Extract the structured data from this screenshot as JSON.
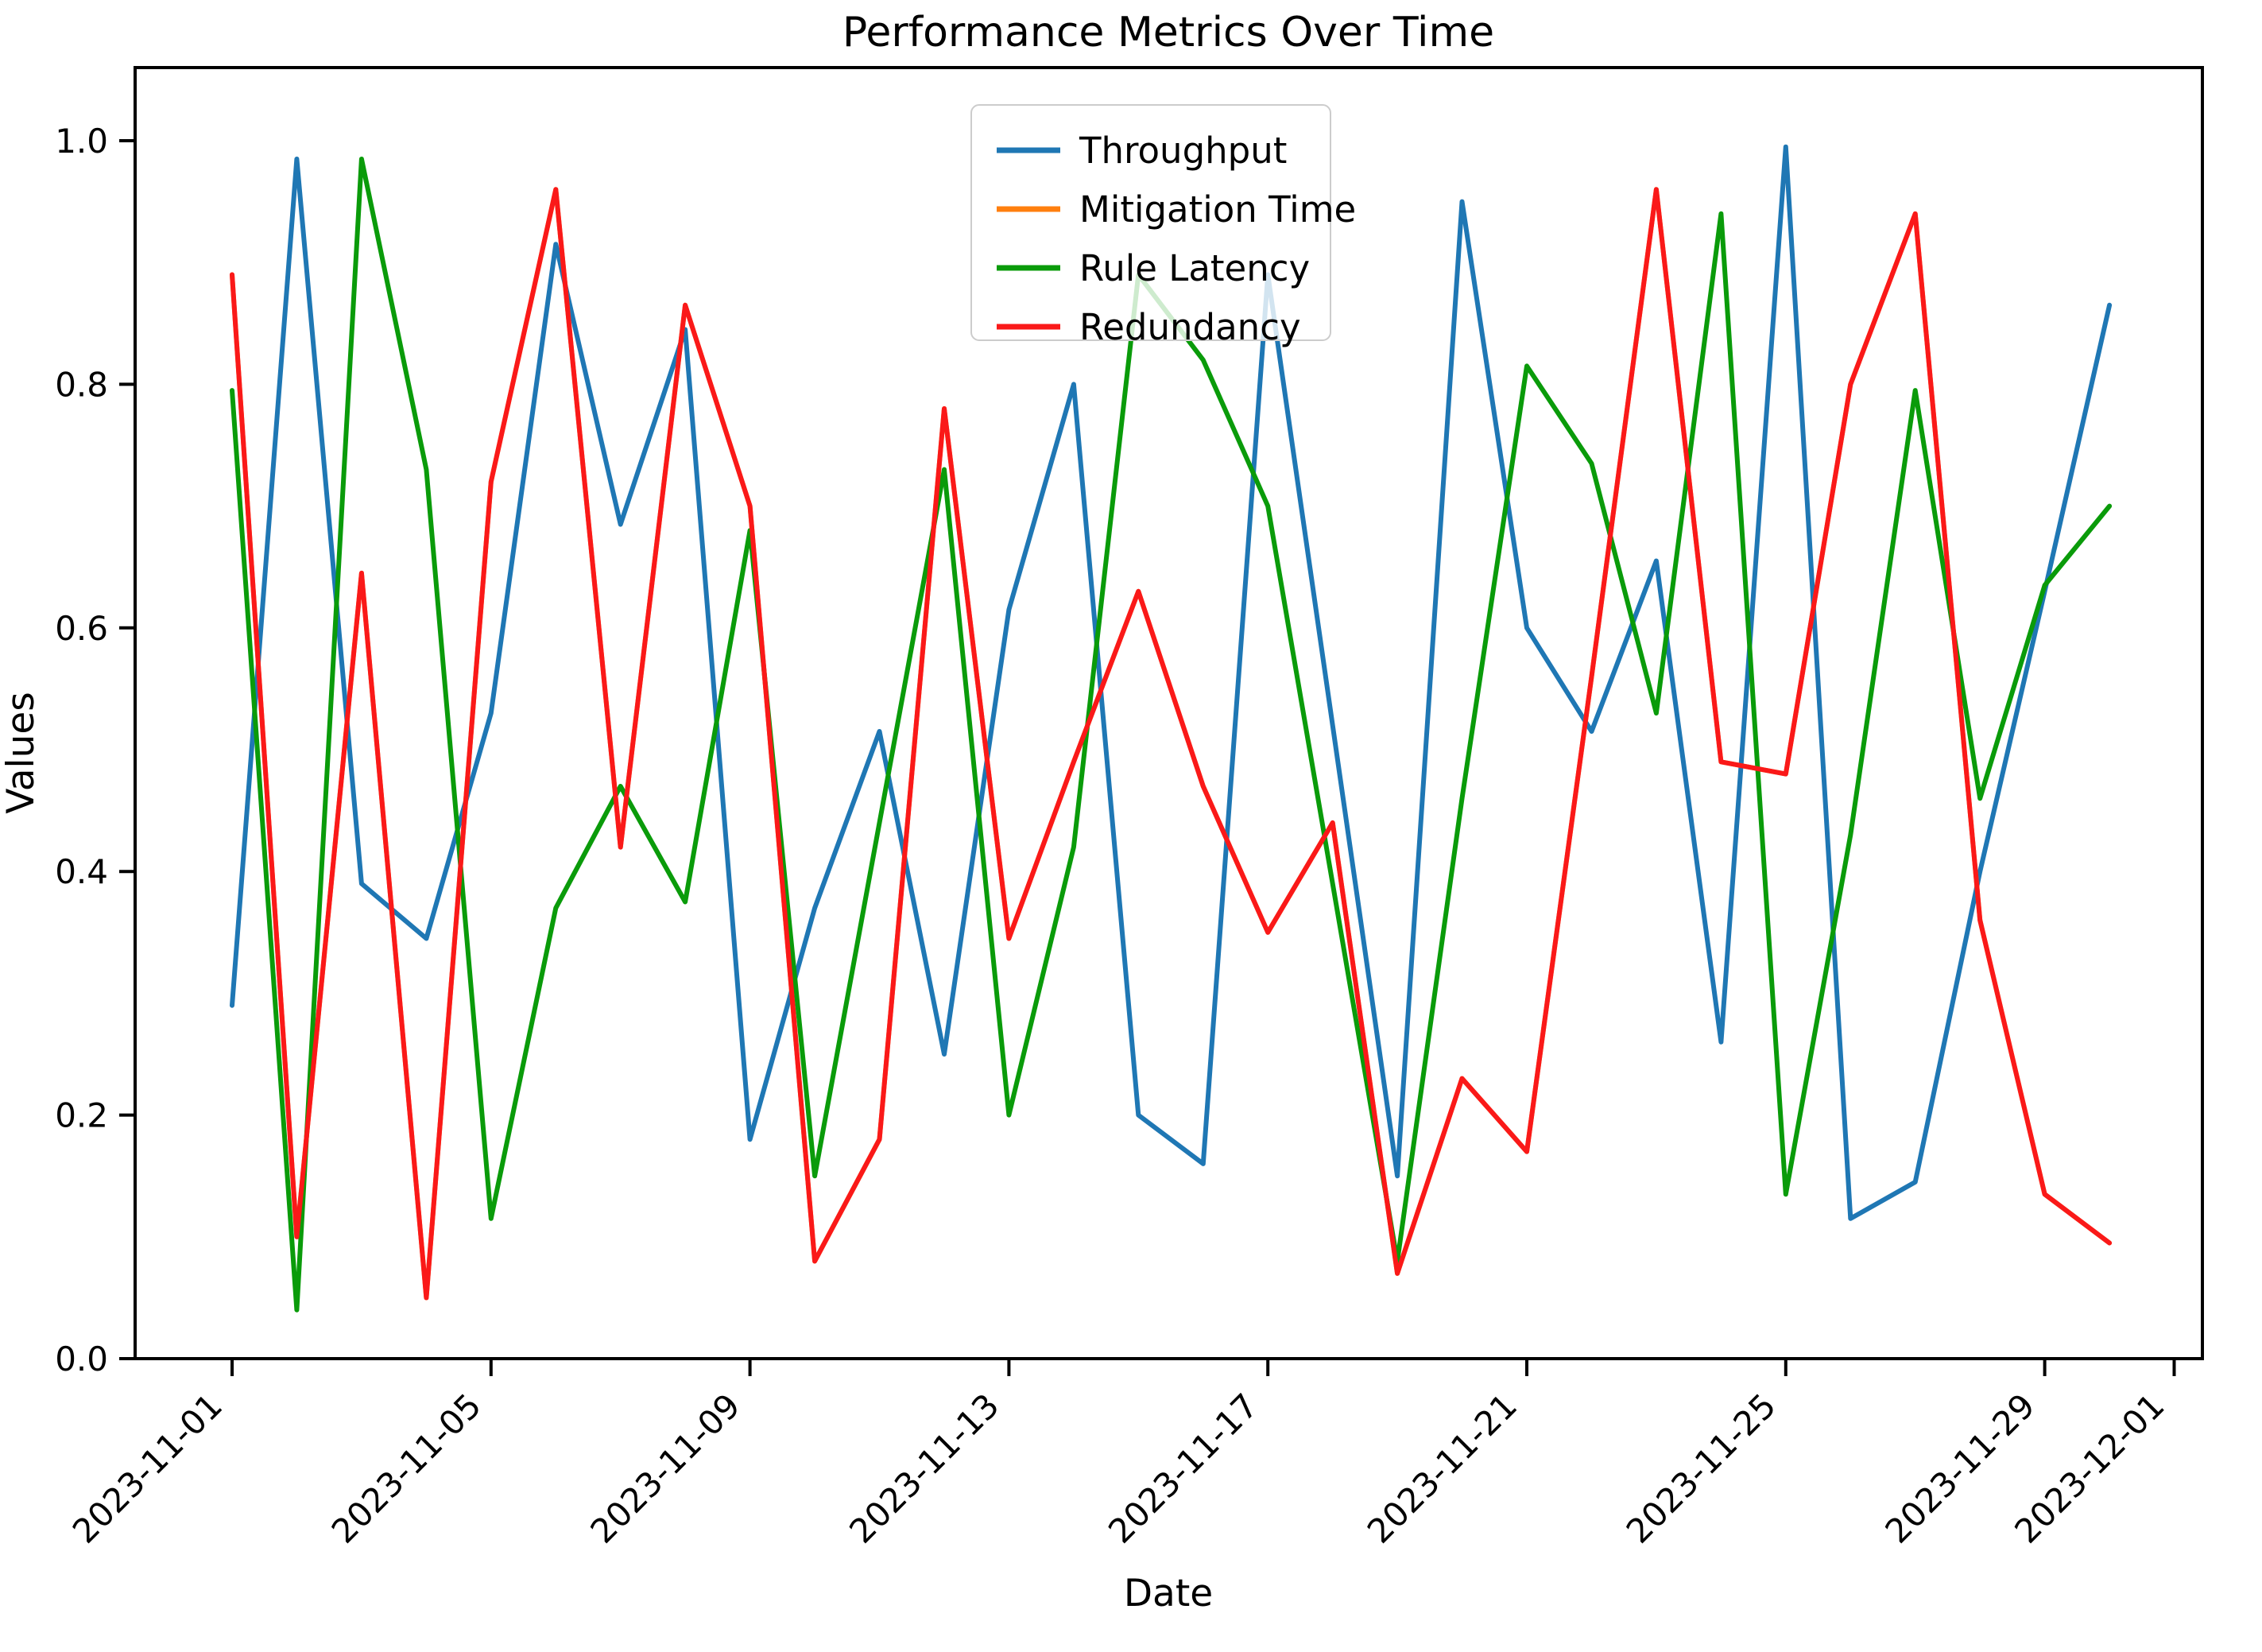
{
  "title": "Performance Metrics Over Time",
  "xlabel": "Date",
  "ylabel": "Values",
  "chart_data": {
    "type": "line",
    "x": [
      "2023-11-01",
      "2023-11-02",
      "2023-11-03",
      "2023-11-04",
      "2023-11-05",
      "2023-11-06",
      "2023-11-07",
      "2023-11-08",
      "2023-11-09",
      "2023-11-10",
      "2023-11-11",
      "2023-11-12",
      "2023-11-13",
      "2023-11-14",
      "2023-11-15",
      "2023-11-16",
      "2023-11-17",
      "2023-11-18",
      "2023-11-19",
      "2023-11-20",
      "2023-11-21",
      "2023-11-22",
      "2023-11-23",
      "2023-11-24",
      "2023-11-25",
      "2023-11-26",
      "2023-11-27",
      "2023-11-28",
      "2023-11-29",
      "2023-11-30"
    ],
    "series": [
      {
        "name": "Throughput",
        "color": "#1f77b4",
        "values": [
          0.29,
          0.985,
          0.39,
          0.345,
          0.53,
          0.915,
          0.685,
          0.845,
          0.18,
          0.37,
          0.515,
          0.25,
          0.615,
          0.8,
          0.2,
          0.16,
          0.89,
          0.52,
          0.15,
          0.95,
          0.6,
          0.515,
          0.655,
          0.26,
          0.995,
          0.115,
          0.145,
          0.4,
          0.63,
          0.865
        ]
      },
      {
        "name": "Mitigation Time",
        "color": "#ff7f0e",
        "note": "not visible in plot; drawn first and completely covered by the Redundancy line (identical values)",
        "values": [
          0.89,
          0.1,
          0.645,
          0.05,
          0.72,
          0.96,
          0.42,
          0.865,
          0.7,
          0.08,
          0.18,
          0.78,
          0.345,
          0.49,
          0.63,
          0.47,
          0.35,
          0.44,
          0.07,
          0.23,
          0.17,
          0.56,
          0.96,
          0.49,
          0.48,
          0.8,
          0.94,
          0.36,
          0.135,
          0.095
        ]
      },
      {
        "name": "Rule Latency",
        "color": "#0a9b0a",
        "values": [
          0.795,
          0.04,
          0.985,
          0.73,
          0.115,
          0.37,
          0.47,
          0.375,
          0.68,
          0.15,
          0.44,
          0.73,
          0.2,
          0.42,
          0.89,
          0.82,
          0.7,
          0.39,
          0.08,
          0.46,
          0.815,
          0.735,
          0.53,
          0.94,
          0.135,
          0.43,
          0.795,
          0.46,
          0.635,
          0.7
        ]
      },
      {
        "name": "Redundancy",
        "color": "#fa1919",
        "values": [
          0.89,
          0.1,
          0.645,
          0.05,
          0.72,
          0.96,
          0.42,
          0.865,
          0.7,
          0.08,
          0.18,
          0.78,
          0.345,
          0.49,
          0.63,
          0.47,
          0.35,
          0.44,
          0.07,
          0.23,
          0.17,
          0.56,
          0.96,
          0.49,
          0.48,
          0.8,
          0.94,
          0.36,
          0.135,
          0.095
        ]
      }
    ],
    "xticks": [
      "2023-11-01",
      "2023-11-05",
      "2023-11-09",
      "2023-11-13",
      "2023-11-17",
      "2023-11-21",
      "2023-11-25",
      "2023-11-29",
      "2023-12-01"
    ],
    "yticks": [
      "0.0",
      "0.2",
      "0.4",
      "0.6",
      "0.8",
      "1.0"
    ],
    "ylim": [
      -0.01,
      1.05
    ],
    "xlim_dates": [
      "2023-10-30",
      "2023-12-02"
    ],
    "grid": false,
    "legend_position": "upper center",
    "xtick_rotation_deg": 45
  }
}
